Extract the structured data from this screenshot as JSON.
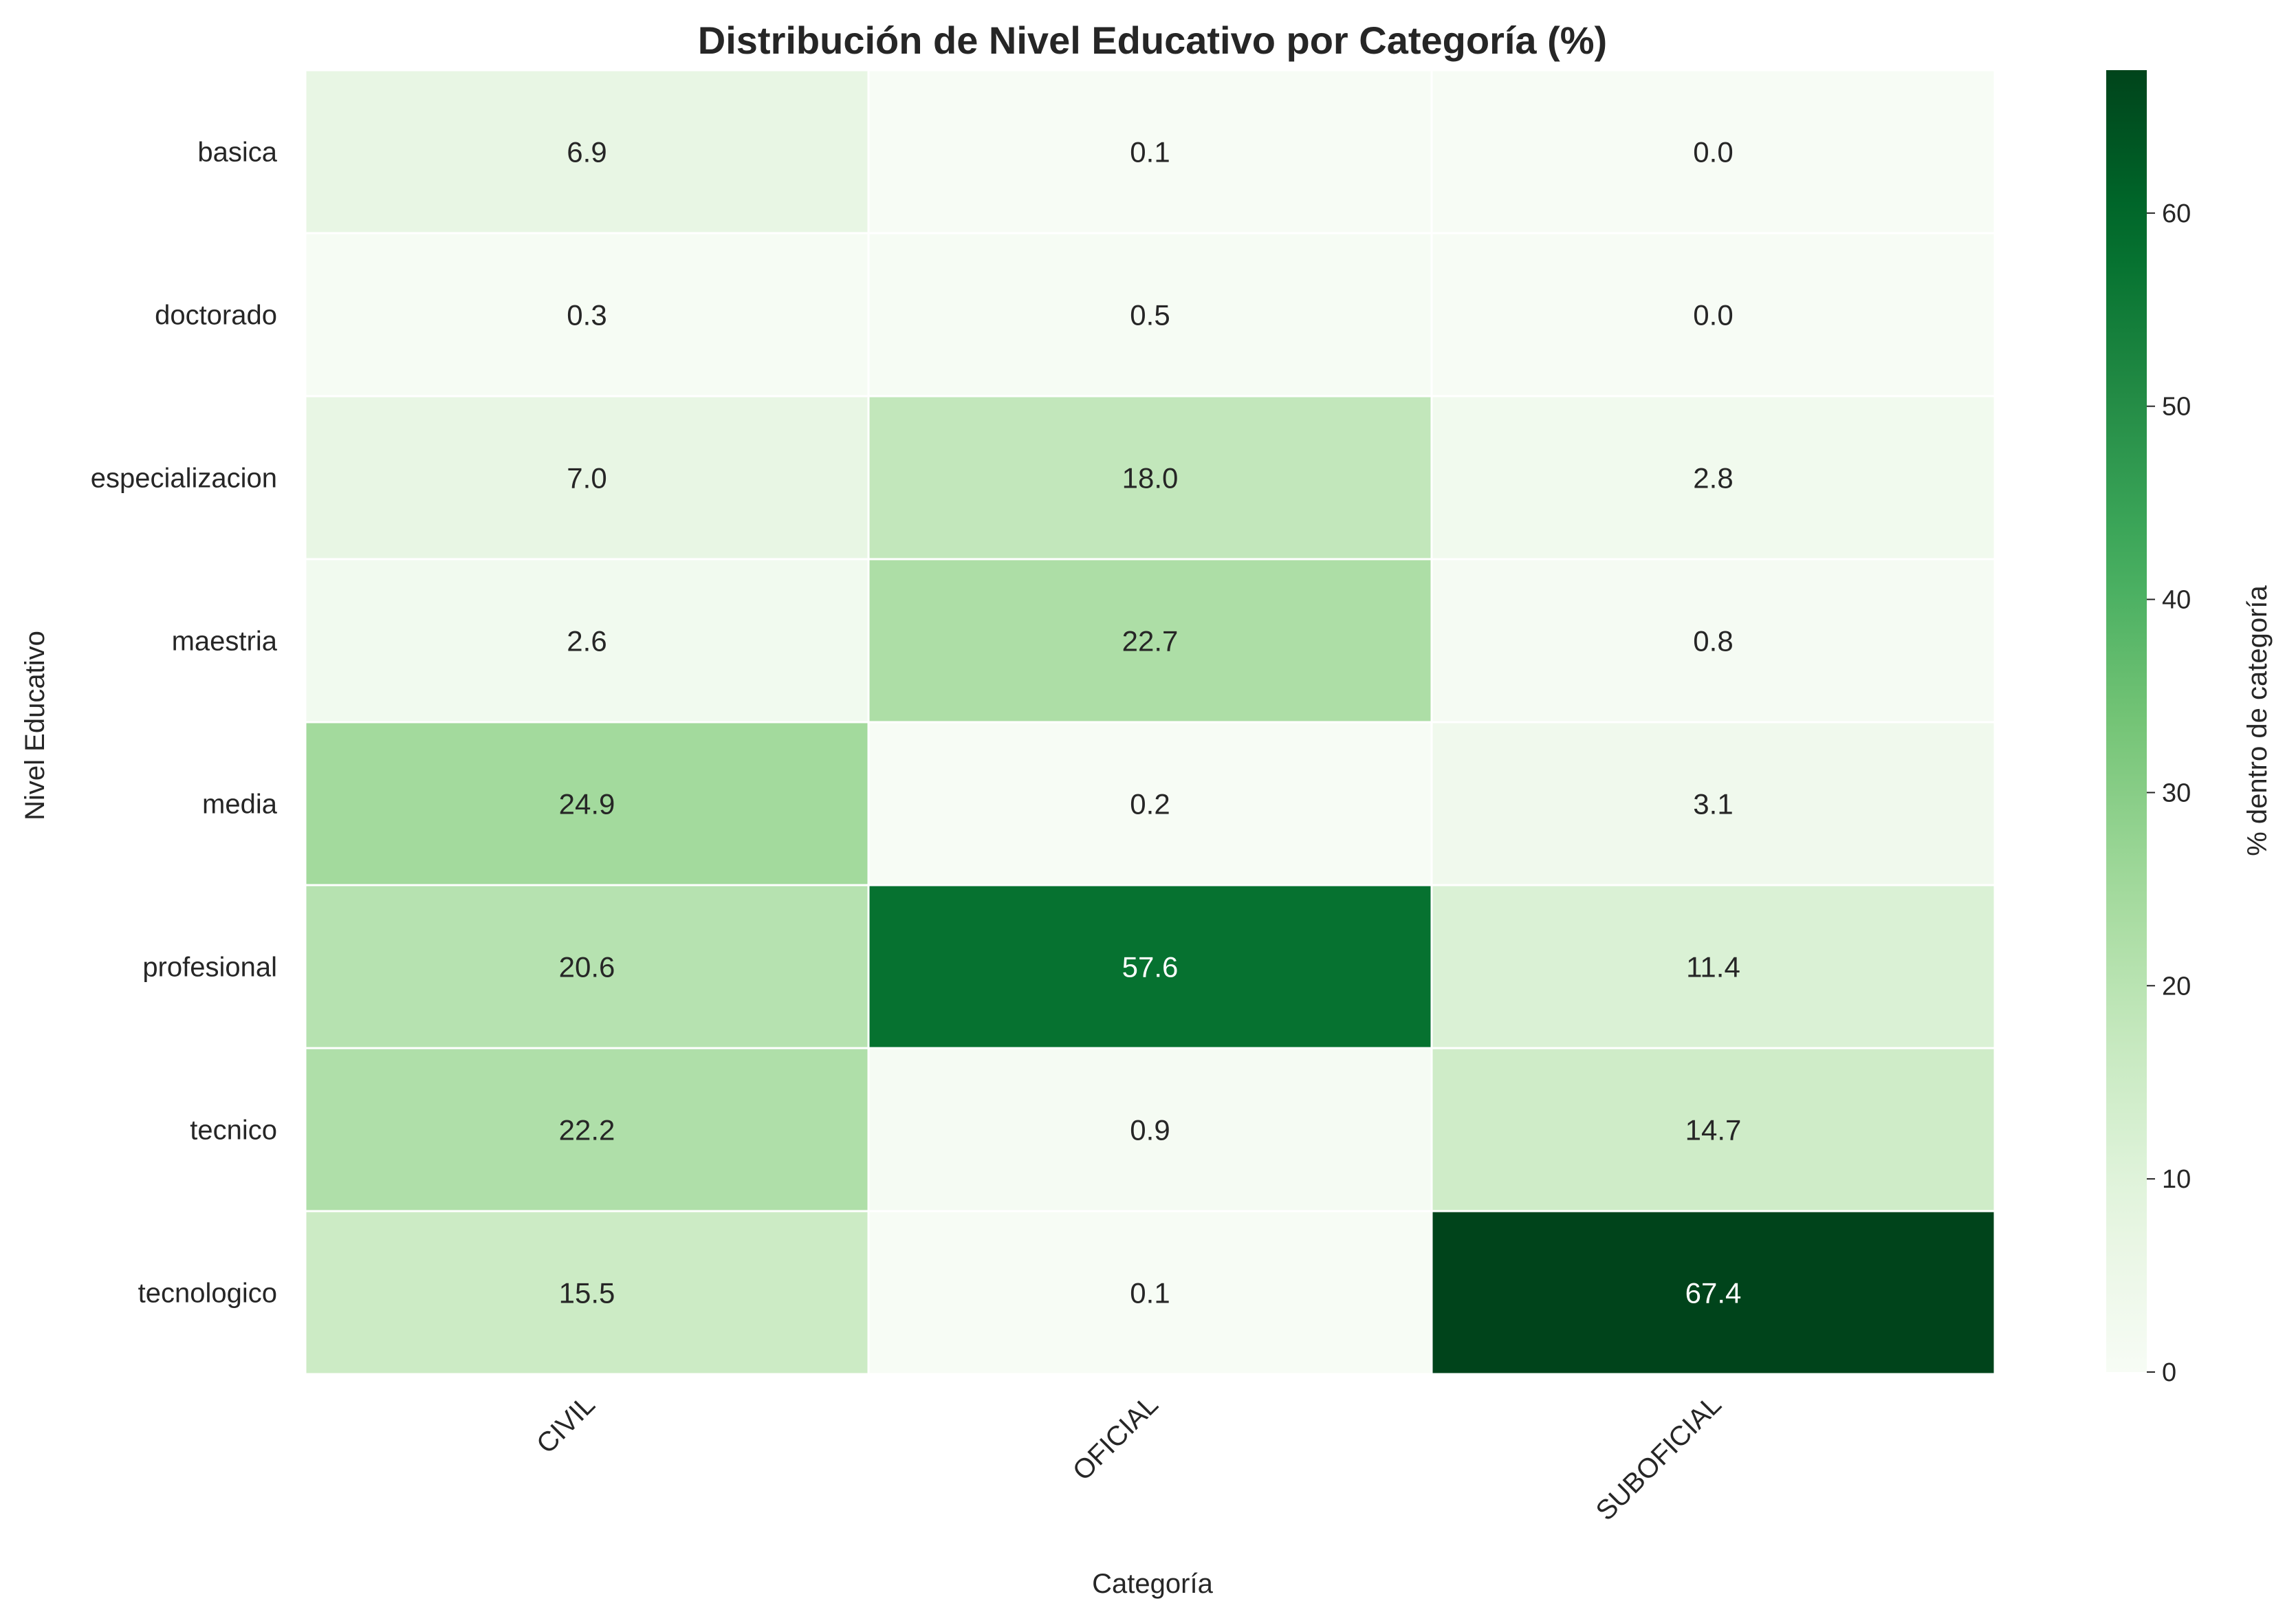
{
  "chart_data": {
    "type": "heatmap",
    "title": "Distribución de Nivel Educativo por Categoría (%)",
    "xlabel": "Categoría",
    "ylabel": "Nivel Educativo",
    "x_categories": [
      "CIVIL",
      "OFICIAL",
      "SUBOFICIAL"
    ],
    "y_categories": [
      "basica",
      "doctorado",
      "especializacion",
      "maestria",
      "media",
      "profesional",
      "tecnico",
      "tecnologico"
    ],
    "values": [
      [
        6.9,
        0.1,
        0.0
      ],
      [
        0.3,
        0.5,
        0.0
      ],
      [
        7.0,
        18.0,
        2.8
      ],
      [
        2.6,
        22.7,
        0.8
      ],
      [
        24.9,
        0.2,
        3.1
      ],
      [
        20.6,
        57.6,
        11.4
      ],
      [
        22.2,
        0.9,
        14.7
      ],
      [
        15.5,
        0.1,
        67.4
      ]
    ],
    "value_format": "0.1f",
    "colorbar": {
      "label": "% dentro de categoría",
      "range": [
        0,
        67.4
      ],
      "ticks": [
        0,
        10,
        20,
        30,
        40,
        50,
        60
      ],
      "colormap": "Greens"
    },
    "grid": false,
    "x_tick_rotation": 45
  }
}
